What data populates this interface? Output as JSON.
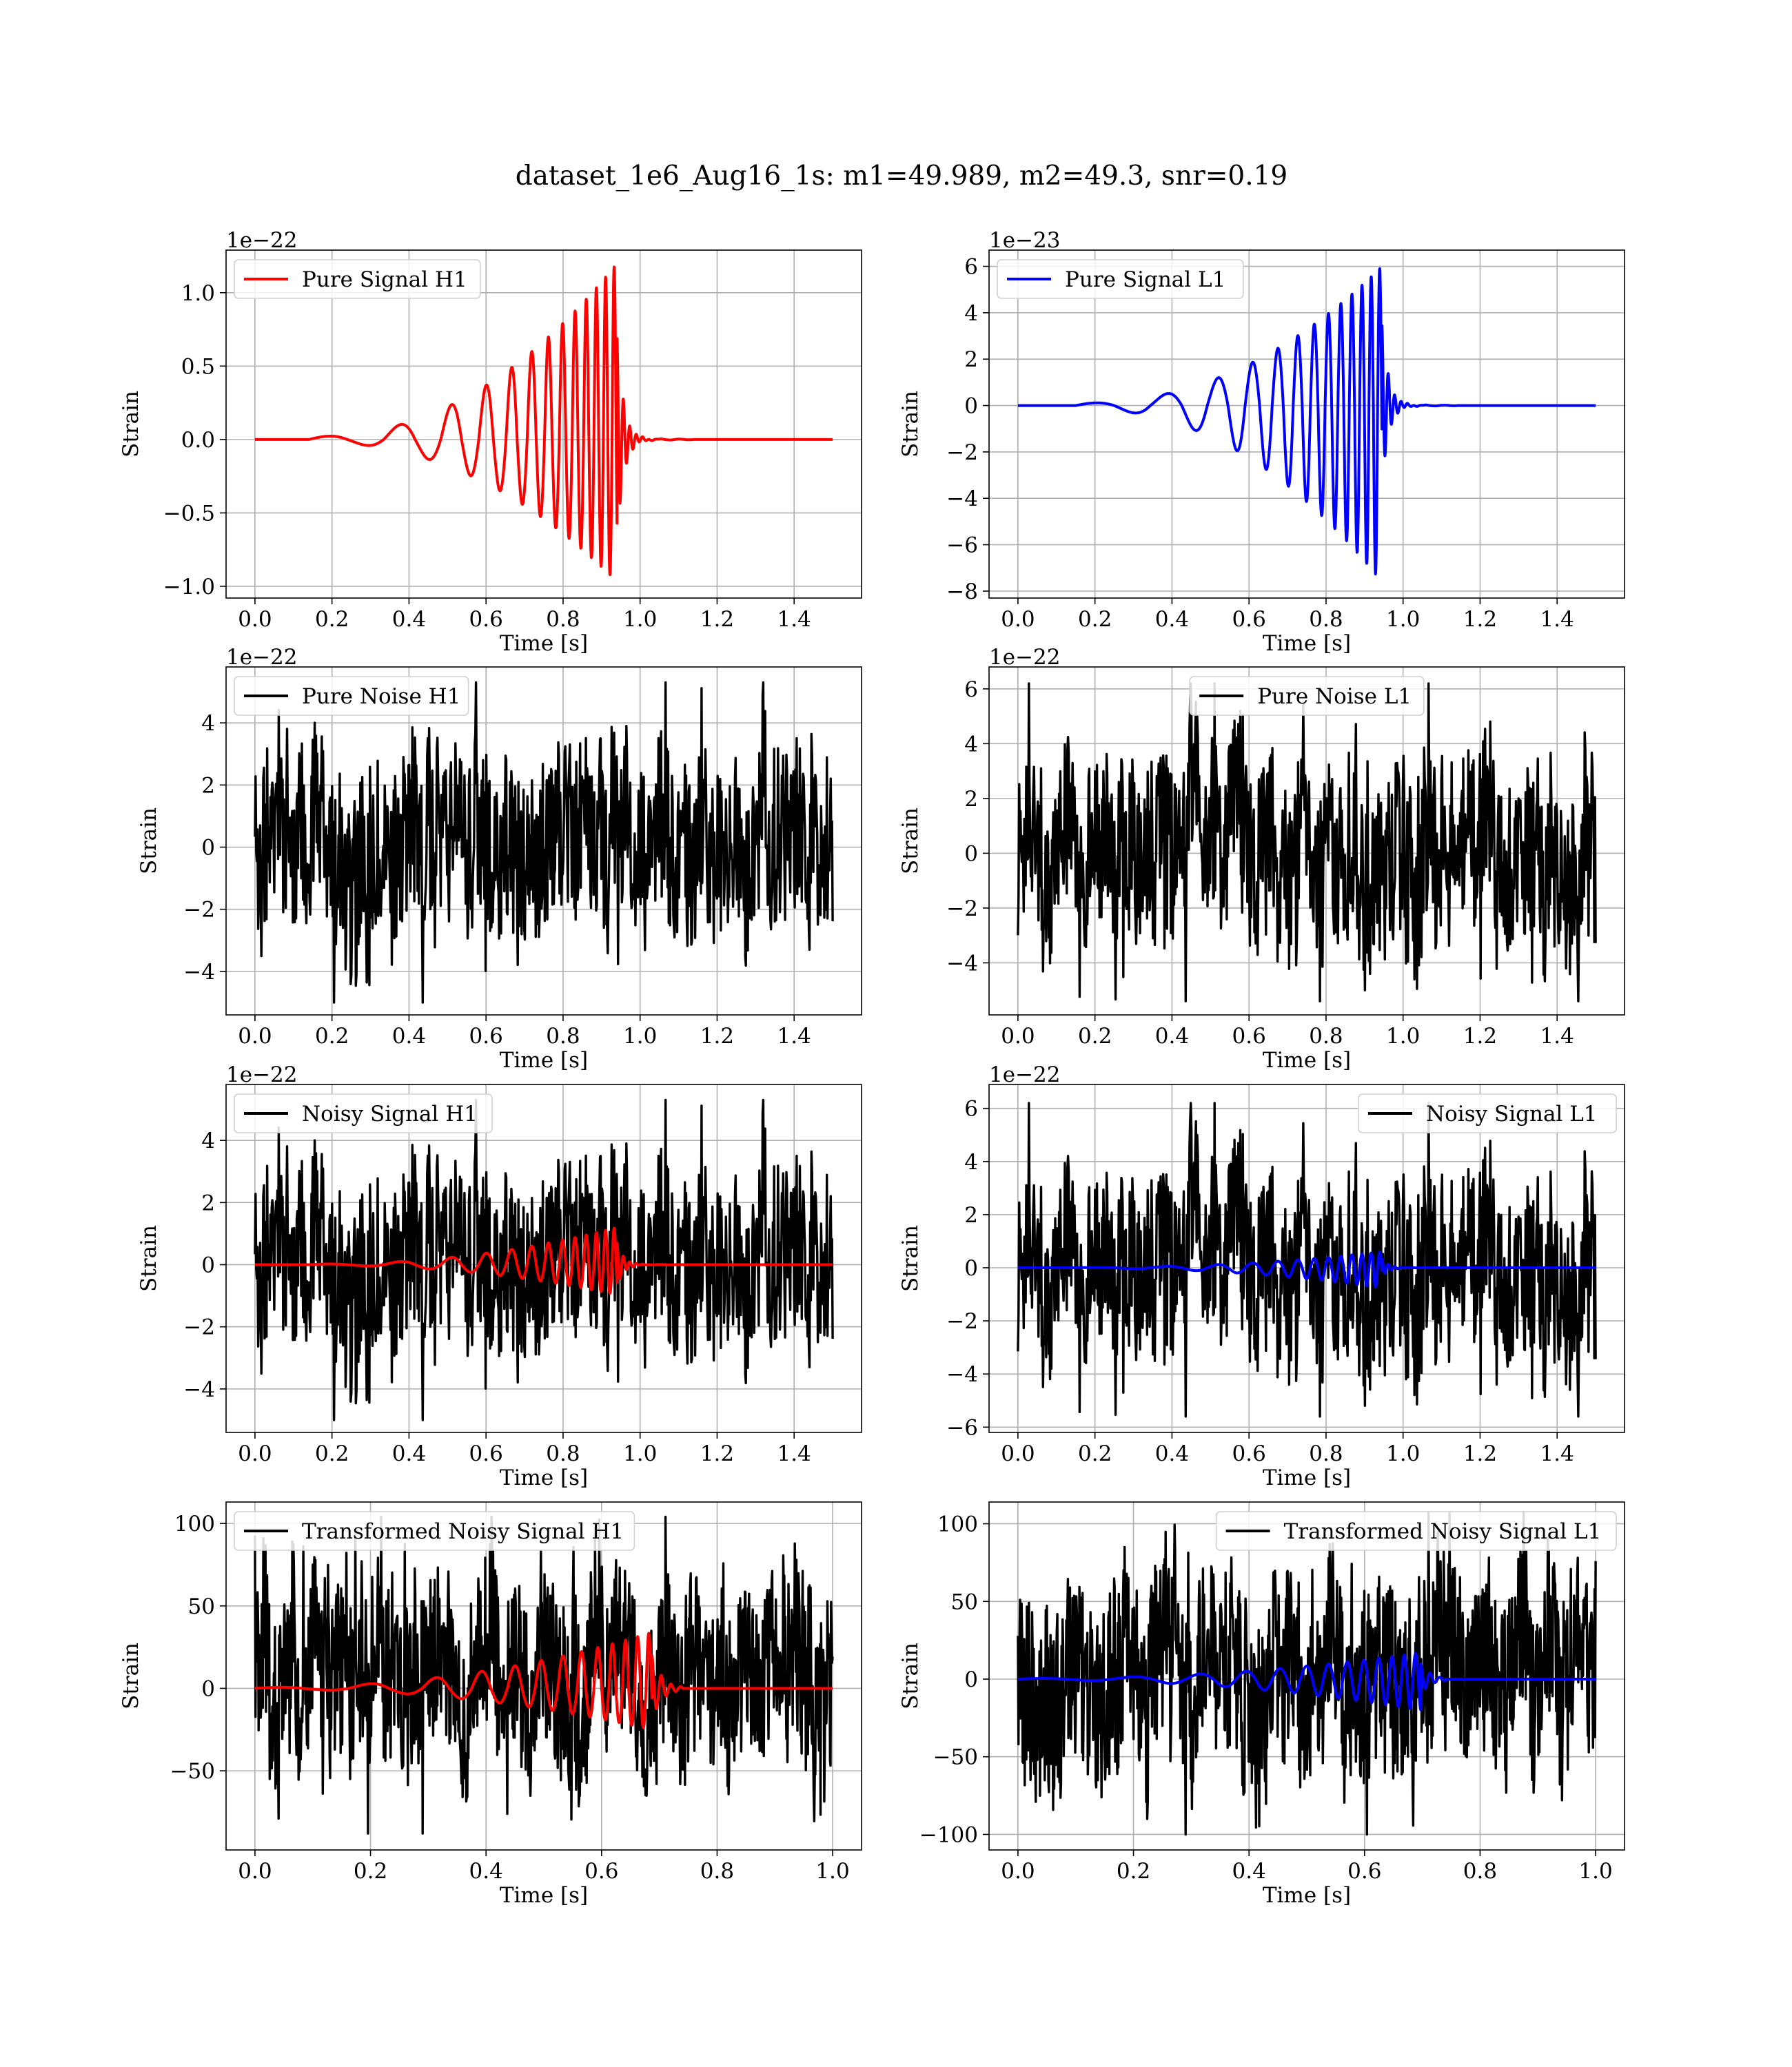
{
  "figure": {
    "title": "dataset_1e6_Aug16_1s: m1=49.989, m2=49.3, snr=0.19"
  },
  "chart_data": [
    {
      "type": "line",
      "legend": "Pure Signal H1",
      "legend_position": "upper left",
      "xlabel": "Time [s]",
      "ylabel": "Strain",
      "offset_text": "1e−22",
      "xlim": [
        -0.075,
        1.575
      ],
      "ylim": [
        -1.08,
        1.29
      ],
      "xticks": [
        0.0,
        0.2,
        0.4,
        0.6,
        0.8,
        1.0,
        1.2,
        1.4
      ],
      "xtick_labels": [
        "0.0",
        "0.2",
        "0.4",
        "0.6",
        "0.8",
        "1.0",
        "1.2",
        "1.4"
      ],
      "yticks": [
        1.0,
        0.5,
        0.0,
        -0.5,
        -1.0
      ],
      "ytick_labels": [
        "1.0",
        "0.5",
        "0.0",
        "−0.5",
        "−1.0"
      ],
      "grid": true,
      "series": [
        {
          "kind": "chirp",
          "color": "#ff0000",
          "t_start": 0.0,
          "t_end": 1.5,
          "t_merge": 0.94,
          "onset": 0.14,
          "f_start": 5,
          "f_merge": 48,
          "peak": 1.2,
          "trough": -0.97,
          "early_amplitude": 0.02,
          "ringdown_end": 1.14
        }
      ]
    },
    {
      "type": "line",
      "legend": "Pure Signal L1",
      "legend_position": "upper left",
      "xlabel": "Time [s]",
      "ylabel": "Strain",
      "offset_text": "1e−23",
      "xlim": [
        -0.075,
        1.575
      ],
      "ylim": [
        -8.3,
        6.7
      ],
      "xticks": [
        0.0,
        0.2,
        0.4,
        0.6,
        0.8,
        1.0,
        1.2,
        1.4
      ],
      "xtick_labels": [
        "0.0",
        "0.2",
        "0.4",
        "0.6",
        "0.8",
        "1.0",
        "1.2",
        "1.4"
      ],
      "yticks": [
        6,
        4,
        2,
        0,
        -2,
        -4,
        -6,
        -8
      ],
      "ytick_labels": [
        "6",
        "4",
        "2",
        "0",
        "−2",
        "−4",
        "−6",
        "−8"
      ],
      "grid": true,
      "series": [
        {
          "kind": "chirp",
          "color": "#0000ff",
          "t_start": 0.0,
          "t_end": 1.5,
          "t_merge": 0.945,
          "onset": 0.15,
          "f_start": 5,
          "f_merge": 48,
          "peak": 6.0,
          "trough": -7.6,
          "early_amplitude": 0.1,
          "ringdown_end": 1.14
        }
      ]
    },
    {
      "type": "line",
      "legend": "Pure Noise H1",
      "legend_position": "upper left",
      "xlabel": "Time [s]",
      "ylabel": "Strain",
      "offset_text": "1e−22",
      "xlim": [
        -0.075,
        1.575
      ],
      "ylim": [
        -5.4,
        5.8
      ],
      "xticks": [
        0.0,
        0.2,
        0.4,
        0.6,
        0.8,
        1.0,
        1.2,
        1.4
      ],
      "xtick_labels": [
        "0.0",
        "0.2",
        "0.4",
        "0.6",
        "0.8",
        "1.0",
        "1.2",
        "1.4"
      ],
      "yticks": [
        4,
        2,
        0,
        -2,
        -4
      ],
      "ytick_labels": [
        "4",
        "2",
        "0",
        "−2",
        "−4"
      ],
      "grid": true,
      "series": [
        {
          "kind": "noise",
          "color": "#000000",
          "t_start": 0.0,
          "t_end": 1.5,
          "max": 5.3,
          "min": -5.0,
          "samples": 900,
          "seed": 11
        }
      ]
    },
    {
      "type": "line",
      "legend": "Pure Noise L1",
      "legend_position": "upper center",
      "xlabel": "Time [s]",
      "ylabel": "Strain",
      "offset_text": "1e−22",
      "xlim": [
        -0.075,
        1.575
      ],
      "ylim": [
        -5.9,
        6.8
      ],
      "xticks": [
        0.0,
        0.2,
        0.4,
        0.6,
        0.8,
        1.0,
        1.2,
        1.4
      ],
      "xtick_labels": [
        "0.0",
        "0.2",
        "0.4",
        "0.6",
        "0.8",
        "1.0",
        "1.2",
        "1.4"
      ],
      "yticks": [
        6,
        4,
        2,
        0,
        -2,
        -4
      ],
      "ytick_labels": [
        "6",
        "4",
        "2",
        "0",
        "−2",
        "−4"
      ],
      "grid": true,
      "series": [
        {
          "kind": "noise",
          "color": "#000000",
          "t_start": 0.0,
          "t_end": 1.5,
          "max": 6.2,
          "min": -5.4,
          "samples": 900,
          "seed": 23
        }
      ]
    },
    {
      "type": "line",
      "legend": "Noisy Signal H1",
      "legend_position": "upper left",
      "xlabel": "Time [s]",
      "ylabel": "Strain",
      "offset_text": "1e−22",
      "xlim": [
        -0.075,
        1.575
      ],
      "ylim": [
        -5.4,
        5.8
      ],
      "xticks": [
        0.0,
        0.2,
        0.4,
        0.6,
        0.8,
        1.0,
        1.2,
        1.4
      ],
      "xtick_labels": [
        "0.0",
        "0.2",
        "0.4",
        "0.6",
        "0.8",
        "1.0",
        "1.2",
        "1.4"
      ],
      "yticks": [
        4,
        2,
        0,
        -2,
        -4
      ],
      "ytick_labels": [
        "4",
        "2",
        "0",
        "−2",
        "−4"
      ],
      "grid": true,
      "series": [
        {
          "kind": "noise",
          "color": "#000000",
          "t_start": 0.0,
          "t_end": 1.5,
          "max": 5.3,
          "min": -5.0,
          "samples": 900,
          "seed": 11
        },
        {
          "kind": "chirp",
          "color": "#ff0000",
          "t_start": 0.0,
          "t_end": 1.5,
          "t_merge": 0.94,
          "onset": 0.14,
          "f_start": 5,
          "f_merge": 48,
          "peak": 1.2,
          "trough": -0.97,
          "early_amplitude": 0.02,
          "ringdown_end": 1.14
        }
      ]
    },
    {
      "type": "line",
      "legend": "Noisy Signal L1",
      "legend_position": "upper right",
      "xlabel": "Time [s]",
      "ylabel": "Strain",
      "offset_text": "1e−22",
      "xlim": [
        -0.075,
        1.575
      ],
      "ylim": [
        -6.2,
        6.9
      ],
      "xticks": [
        0.0,
        0.2,
        0.4,
        0.6,
        0.8,
        1.0,
        1.2,
        1.4
      ],
      "xtick_labels": [
        "0.0",
        "0.2",
        "0.4",
        "0.6",
        "0.8",
        "1.0",
        "1.2",
        "1.4"
      ],
      "yticks": [
        6,
        4,
        2,
        0,
        -2,
        -4,
        -6
      ],
      "ytick_labels": [
        "6",
        "4",
        "2",
        "0",
        "−2",
        "−4",
        "−6"
      ],
      "grid": true,
      "series": [
        {
          "kind": "noise",
          "color": "#000000",
          "t_start": 0.0,
          "t_end": 1.5,
          "max": 6.2,
          "min": -5.6,
          "samples": 900,
          "seed": 23
        },
        {
          "kind": "chirp",
          "color": "#0000ff",
          "t_start": 0.0,
          "t_end": 1.5,
          "t_merge": 0.945,
          "onset": 0.15,
          "f_start": 5,
          "f_merge": 48,
          "peak": 0.6,
          "trough": -0.76,
          "early_amplitude": 0.01,
          "ringdown_end": 1.14
        }
      ]
    },
    {
      "type": "line",
      "legend": "Transformed Noisy Signal H1",
      "legend_position": "upper left",
      "xlabel": "Time [s]",
      "ylabel": "Strain",
      "offset_text": "",
      "xlim": [
        -0.05,
        1.05
      ],
      "ylim": [
        -98,
        113
      ],
      "xticks": [
        0.0,
        0.2,
        0.4,
        0.6,
        0.8,
        1.0
      ],
      "xtick_labels": [
        "0.0",
        "0.2",
        "0.4",
        "0.6",
        "0.8",
        "1.0"
      ],
      "yticks": [
        100,
        50,
        0,
        -50
      ],
      "ytick_labels": [
        "100",
        "50",
        "0",
        "−50"
      ],
      "grid": true,
      "series": [
        {
          "kind": "noise",
          "color": "#000000",
          "t_start": 0.0,
          "t_end": 1.0,
          "max": 104,
          "min": -88,
          "samples": 1100,
          "seed": 37
        },
        {
          "kind": "chirp",
          "color": "#ff0000",
          "t_start": 0.0,
          "t_end": 1.0,
          "t_merge": 0.687,
          "onset": 0.0,
          "f_start": 6,
          "f_merge": 55,
          "peak": 34,
          "trough": -25,
          "early_amplitude": 0.6,
          "ringdown_end": 0.74
        }
      ]
    },
    {
      "type": "line",
      "legend": "Transformed Noisy Signal L1",
      "legend_position": "upper right",
      "xlabel": "Time [s]",
      "ylabel": "Strain",
      "offset_text": "",
      "xlim": [
        -0.05,
        1.05
      ],
      "ylim": [
        -110,
        114
      ],
      "xticks": [
        0.0,
        0.2,
        0.4,
        0.6,
        0.8,
        1.0
      ],
      "xtick_labels": [
        "0.0",
        "0.2",
        "0.4",
        "0.6",
        "0.8",
        "1.0"
      ],
      "yticks": [
        100,
        50,
        0,
        -50,
        -100
      ],
      "ytick_labels": [
        "100",
        "50",
        "0",
        "−50",
        "−100"
      ],
      "grid": true,
      "series": [
        {
          "kind": "noise",
          "color": "#000000",
          "t_start": 0.0,
          "t_end": 1.0,
          "max": 107,
          "min": -100,
          "samples": 1100,
          "seed": 53
        },
        {
          "kind": "chirp",
          "color": "#0000ff",
          "t_start": 0.0,
          "t_end": 1.0,
          "t_merge": 0.697,
          "onset": 0.0,
          "f_start": 6,
          "f_merge": 55,
          "peak": 17,
          "trough": -20,
          "early_amplitude": 0.4,
          "ringdown_end": 0.74
        }
      ]
    }
  ]
}
